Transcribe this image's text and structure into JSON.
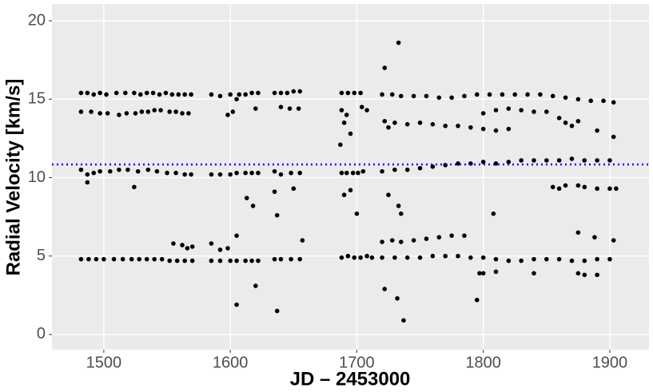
{
  "chart_data": {
    "type": "scatter",
    "x_label": "JD – 2453000",
    "y_label": "Radial Velocity [km/s]",
    "xlim": [
      1459,
      1931
    ],
    "ylim": [
      -0.97,
      21.07
    ],
    "xticks": [
      1500,
      1600,
      1700,
      1800,
      1900
    ],
    "yticks": [
      0,
      5,
      10,
      15,
      20
    ],
    "grid": true,
    "color": "#000000",
    "hline": 10.84,
    "hline_color": "#0000ff",
    "x": [
      1482,
      1487,
      1492,
      1497,
      1502,
      1510,
      1517,
      1524,
      1529,
      1534,
      1539,
      1544,
      1549,
      1554,
      1559,
      1564,
      1569,
      1482,
      1490,
      1497,
      1503,
      1512,
      1518,
      1525,
      1530,
      1535,
      1540,
      1545,
      1552,
      1557,
      1562,
      1567,
      1482,
      1487,
      1492,
      1497,
      1505,
      1512,
      1519,
      1527,
      1535,
      1542,
      1550,
      1557,
      1564,
      1569,
      1487,
      1524,
      1482,
      1488,
      1494,
      1500,
      1508,
      1515,
      1522,
      1528,
      1534,
      1540,
      1546,
      1552,
      1558,
      1564,
      1570,
      1555,
      1562,
      1566,
      1570,
      1585,
      1592,
      1600,
      1607,
      1612,
      1617,
      1622,
      1635,
      1640,
      1645,
      1650,
      1655,
      1598,
      1602,
      1620,
      1640,
      1647,
      1654,
      1585,
      1592,
      1600,
      1605,
      1612,
      1617,
      1622,
      1635,
      1640,
      1648,
      1655,
      1585,
      1592,
      1600,
      1605,
      1612,
      1617,
      1622,
      1635,
      1640,
      1648,
      1655,
      1585,
      1592,
      1598,
      1605,
      1613,
      1618,
      1605,
      1620,
      1635,
      1637,
      1637,
      1650,
      1657,
      1605,
      1688,
      1693,
      1698,
      1703,
      1688,
      1692,
      1704,
      1708,
      1688,
      1692,
      1697,
      1701,
      1705,
      1688,
      1693,
      1698,
      1703,
      1708,
      1712,
      1687,
      1690,
      1695,
      1690,
      1695,
      1700,
      1720,
      1728,
      1735,
      1745,
      1755,
      1765,
      1775,
      1785,
      1795,
      1805,
      1815,
      1825,
      1835,
      1845,
      1855,
      1865,
      1875,
      1885,
      1895,
      1903,
      1722,
      1730,
      1740,
      1750,
      1760,
      1770,
      1780,
      1790,
      1800,
      1810,
      1820,
      1800,
      1810,
      1820,
      1830,
      1840,
      1850,
      1860,
      1865,
      1870,
      1720,
      1730,
      1740,
      1750,
      1760,
      1770,
      1780,
      1790,
      1800,
      1810,
      1820,
      1830,
      1840,
      1850,
      1860,
      1870,
      1880,
      1890,
      1900,
      1855,
      1860,
      1865,
      1875,
      1880,
      1890,
      1900,
      1905,
      1720,
      1728,
      1735,
      1745,
      1755,
      1765,
      1775,
      1785,
      1720,
      1730,
      1740,
      1750,
      1760,
      1770,
      1780,
      1790,
      1800,
      1810,
      1820,
      1830,
      1840,
      1850,
      1860,
      1870,
      1880,
      1890,
      1900,
      1722,
      1733,
      1725,
      1725,
      1733,
      1735,
      1722,
      1732,
      1737,
      1795,
      1797,
      1800,
      1808,
      1810,
      1840,
      1875,
      1888,
      1903,
      1880,
      1890,
      1903,
      1890,
      1875,
      1875
    ],
    "values": [
      15.4,
      15.4,
      15.3,
      15.4,
      15.3,
      15.4,
      15.4,
      15.4,
      15.3,
      15.4,
      15.4,
      15.3,
      15.4,
      15.3,
      15.3,
      15.3,
      15.3,
      14.2,
      14.2,
      14.1,
      14.1,
      14.0,
      14.1,
      14.1,
      14.2,
      14.2,
      14.3,
      14.3,
      14.2,
      14.2,
      14.1,
      14.1,
      10.5,
      10.2,
      10.3,
      10.4,
      10.4,
      10.5,
      10.5,
      10.4,
      10.5,
      10.4,
      10.3,
      10.3,
      10.2,
      10.2,
      9.7,
      9.4,
      4.8,
      4.8,
      4.8,
      4.8,
      4.8,
      4.8,
      4.8,
      4.8,
      4.8,
      4.8,
      4.8,
      4.7,
      4.7,
      4.7,
      4.7,
      5.8,
      5.7,
      5.5,
      5.6,
      15.3,
      15.2,
      15.3,
      15.3,
      15.3,
      15.4,
      15.4,
      15.4,
      15.4,
      15.4,
      15.5,
      15.5,
      14.0,
      14.2,
      14.4,
      14.5,
      14.4,
      14.4,
      10.2,
      10.2,
      10.2,
      10.3,
      10.3,
      10.3,
      10.3,
      10.4,
      10.2,
      10.3,
      10.3,
      4.7,
      4.7,
      4.7,
      4.7,
      4.7,
      4.7,
      4.7,
      4.8,
      4.8,
      4.8,
      4.8,
      5.8,
      5.4,
      5.5,
      6.3,
      8.7,
      8.2,
      1.9,
      3.1,
      9.1,
      7.6,
      1.5,
      9.3,
      6.0,
      15.0,
      15.4,
      15.4,
      15.4,
      15.4,
      14.3,
      14.0,
      14.5,
      14.3,
      10.3,
      10.3,
      10.3,
      10.3,
      10.4,
      4.9,
      5.0,
      4.9,
      4.9,
      5.0,
      4.9,
      12.1,
      13.5,
      12.8,
      8.9,
      9.2,
      7.7,
      15.3,
      15.3,
      15.2,
      15.2,
      15.2,
      15.1,
      15.1,
      15.2,
      15.3,
      15.3,
      15.3,
      15.3,
      15.3,
      15.3,
      15.2,
      15.1,
      15.0,
      14.9,
      14.9,
      14.8,
      13.6,
      13.5,
      13.4,
      13.5,
      13.4,
      13.3,
      13.3,
      13.2,
      13.1,
      13.0,
      13.1,
      14.1,
      14.3,
      14.4,
      14.3,
      14.2,
      14.2,
      13.8,
      13.5,
      13.3,
      10.4,
      10.5,
      10.5,
      10.6,
      10.7,
      10.8,
      10.9,
      10.9,
      11.0,
      10.9,
      11.0,
      11.1,
      11.1,
      11.1,
      11.1,
      11.2,
      11.1,
      11.1,
      11.1,
      9.4,
      9.3,
      9.5,
      9.5,
      9.4,
      9.3,
      9.3,
      9.3,
      5.9,
      6.0,
      5.9,
      6.0,
      6.1,
      6.2,
      6.3,
      6.3,
      4.9,
      4.9,
      4.9,
      4.9,
      5.0,
      5.0,
      5.0,
      4.9,
      4.9,
      4.8,
      4.7,
      4.7,
      4.8,
      4.8,
      4.8,
      4.7,
      4.7,
      4.8,
      4.8,
      17.0,
      18.6,
      13.2,
      8.9,
      8.2,
      7.7,
      2.9,
      2.3,
      0.9,
      2.2,
      3.9,
      3.9,
      7.7,
      4.0,
      3.9,
      6.5,
      6.2,
      6.0,
      3.8,
      3.8,
      12.6,
      13.0,
      13.6,
      3.9
    ]
  }
}
